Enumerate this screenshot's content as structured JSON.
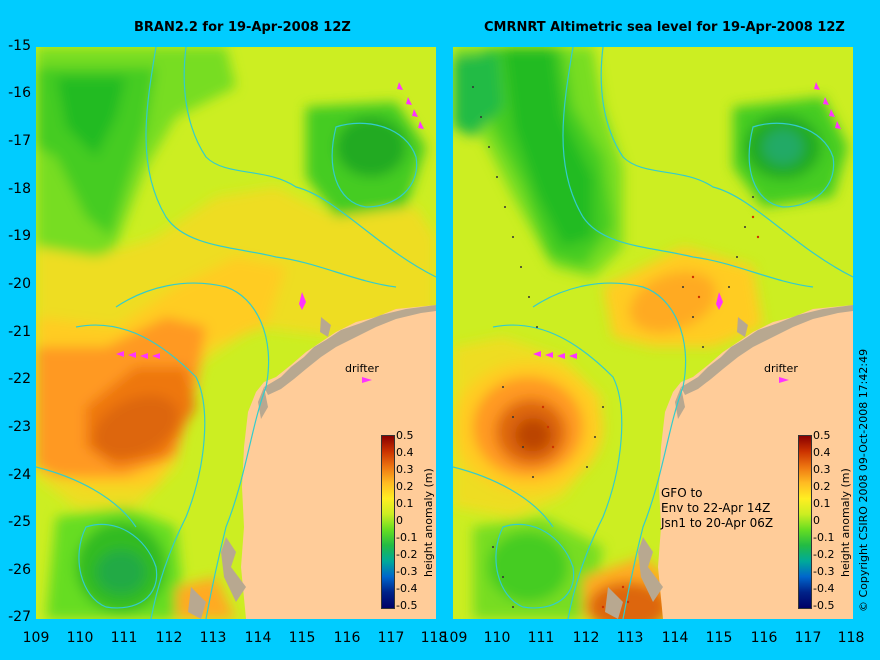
{
  "titles": {
    "left": "BRAN2.2 for 19-Apr-2008 12Z",
    "right": "CMRNRT Altimetric sea level  for 19-Apr-2008 12Z"
  },
  "y_ticks": [
    "-15",
    "-16",
    "-17",
    "-18",
    "-19",
    "-20",
    "-21",
    "-22",
    "-23",
    "-24",
    "-25",
    "-26",
    "-27"
  ],
  "x_ticks_left": [
    "109",
    "110",
    "111",
    "112",
    "113",
    "114",
    "115",
    "116",
    "117",
    "118"
  ],
  "x_ticks_right": [
    "109",
    "110",
    "111",
    "112",
    "113",
    "114",
    "115",
    "116",
    "117",
    "118"
  ],
  "colorbar": {
    "title": "height anomaly (m)",
    "ticks": [
      "0.5",
      "0.4",
      "0.3",
      "0.2",
      "0.1",
      "0",
      "-0.1",
      "-0.2",
      "-0.3",
      "-0.4",
      "-0.5"
    ]
  },
  "labels": {
    "drifter": "drifter",
    "gfo_line1": "GFO to",
    "gfo_line2": "Env to 22-Apr 14Z",
    "gfo_line3": "Jsn1 to 20-Apr 06Z",
    "copyright": "© Copyright CSIRO 2008   09-Oct-2008 17:42:49"
  },
  "colors": {
    "background": "#00ccff",
    "land": "#ffcc99",
    "coast_detail": "#b8a890",
    "contour": "#33cccc",
    "drifter_track": "#ff33ff"
  }
}
